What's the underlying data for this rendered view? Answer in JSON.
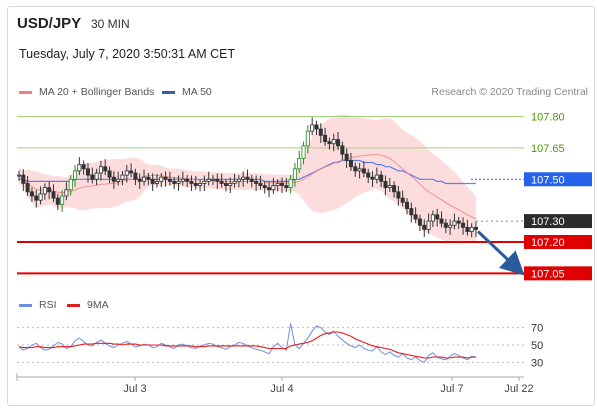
{
  "header": {
    "symbol": "USD/JPY",
    "timeframe": "30 MIN",
    "datetime": "Tuesday, July 7, 2020 3:50:31 AM CET"
  },
  "credit": "Research © 2020 Trading Central",
  "legend_price": [
    {
      "label": "MA 20 + Bollinger Bands",
      "color": "#f08080"
    },
    {
      "label": "MA 50",
      "color": "#3a5fa0"
    }
  ],
  "legend_rsi": [
    {
      "label": "RSI",
      "color": "#6f8fe0"
    },
    {
      "label": "9MA",
      "color": "#e02020"
    }
  ],
  "colors": {
    "resistance_green": "#a4d17a",
    "support_red": "#e00000",
    "current_price": "#2b2b2b",
    "ma50_level": "#2563eb",
    "bollinger_fill": "#fbd0d0",
    "arrow": "#2a5a99",
    "candle": "#333333",
    "candle_up_highlight": "#1f8f1f"
  },
  "chart_data": [
    {
      "type": "candlestick",
      "title": "USD/JPY 30 MIN",
      "y_axis_levels": [
        {
          "value": "107.80",
          "kind": "resistance"
        },
        {
          "value": "107.65",
          "kind": "resistance"
        },
        {
          "value": "107.50",
          "kind": "ma50"
        },
        {
          "value": "107.30",
          "kind": "current"
        },
        {
          "value": "107.20",
          "kind": "support"
        },
        {
          "value": "107.05",
          "kind": "support"
        }
      ],
      "ylim": [
        106.98,
        107.86
      ],
      "x_tick_labels": [
        "Jul 3",
        "Jul 4",
        "Jul 7",
        "Jul 22"
      ],
      "close_series": [
        107.52,
        107.48,
        107.44,
        107.42,
        107.4,
        107.43,
        107.46,
        107.44,
        107.41,
        107.38,
        107.42,
        107.45,
        107.5,
        107.54,
        107.57,
        107.55,
        107.52,
        107.5,
        107.53,
        107.56,
        107.54,
        107.51,
        107.49,
        107.5,
        107.52,
        107.54,
        107.53,
        107.5,
        107.49,
        107.51,
        107.5,
        107.48,
        107.49,
        107.51,
        107.5,
        107.49,
        107.48,
        107.49,
        107.5,
        107.49,
        107.48,
        107.47,
        107.48,
        107.49,
        107.5,
        107.5,
        107.49,
        107.48,
        107.47,
        107.48,
        107.49,
        107.5,
        107.51,
        107.5,
        107.49,
        107.48,
        107.47,
        107.46,
        107.45,
        107.47,
        107.48,
        107.47,
        107.46,
        107.5,
        107.55,
        107.6,
        107.66,
        107.73,
        107.76,
        107.74,
        107.71,
        107.68,
        107.67,
        107.69,
        107.66,
        107.62,
        107.59,
        107.56,
        107.54,
        107.55,
        107.53,
        107.51,
        107.5,
        107.52,
        107.49,
        107.46,
        107.47,
        107.44,
        107.41,
        107.39,
        107.36,
        107.33,
        107.31,
        107.28,
        107.26,
        107.3,
        107.33,
        107.31,
        107.29,
        107.27,
        107.28,
        107.3,
        107.29,
        107.27,
        107.25,
        107.27,
        107.26
      ],
      "ma50_series": [
        107.5,
        107.5,
        107.49,
        107.49,
        107.49,
        107.49,
        107.49,
        107.49,
        107.49,
        107.49,
        107.49,
        107.49,
        107.49,
        107.5,
        107.5,
        107.5,
        107.5,
        107.5,
        107.5,
        107.5,
        107.5,
        107.5,
        107.5,
        107.5,
        107.5,
        107.5,
        107.5,
        107.5,
        107.5,
        107.5,
        107.5,
        107.5,
        107.5,
        107.5,
        107.5,
        107.5,
        107.5,
        107.5,
        107.5,
        107.5,
        107.5,
        107.5,
        107.5,
        107.5,
        107.5,
        107.5,
        107.5,
        107.5,
        107.5,
        107.5,
        107.5,
        107.5,
        107.5,
        107.5,
        107.5,
        107.5,
        107.5,
        107.49,
        107.49,
        107.49,
        107.49,
        107.49,
        107.49,
        107.49,
        107.5,
        107.5,
        107.51,
        107.52,
        107.53,
        107.54,
        107.55,
        107.56,
        107.57,
        107.58,
        107.58,
        107.59,
        107.59,
        107.59,
        107.59,
        107.59,
        107.58,
        107.58,
        107.58,
        107.57,
        107.57,
        107.56,
        107.56,
        107.55,
        107.54,
        107.54,
        107.53,
        107.52,
        107.51,
        107.5,
        107.5,
        107.5,
        107.5,
        107.49,
        107.49,
        107.48,
        107.48,
        107.48,
        107.48,
        107.48,
        107.48,
        107.48,
        107.48
      ],
      "projection_target": "107.05"
    },
    {
      "type": "line",
      "title": "RSI",
      "y_tick_labels": [
        "70",
        "50",
        "30"
      ],
      "ylim": [
        20,
        80
      ],
      "rsi_series": [
        48,
        44,
        46,
        50,
        52,
        47,
        44,
        45,
        49,
        53,
        51,
        46,
        48,
        55,
        58,
        54,
        50,
        49,
        53,
        56,
        52,
        49,
        47,
        50,
        52,
        54,
        51,
        48,
        49,
        51,
        50,
        47,
        48,
        52,
        50,
        48,
        46,
        50,
        51,
        49,
        47,
        46,
        49,
        50,
        52,
        51,
        48,
        47,
        45,
        48,
        50,
        53,
        52,
        49,
        47,
        45,
        44,
        42,
        40,
        48,
        52,
        47,
        44,
        75,
        50,
        46,
        52,
        58,
        66,
        72,
        70,
        65,
        62,
        66,
        60,
        56,
        52,
        49,
        47,
        50,
        46,
        44,
        43,
        48,
        42,
        39,
        42,
        38,
        36,
        40,
        35,
        33,
        36,
        32,
        30,
        38,
        41,
        36,
        34,
        33,
        37,
        40,
        38,
        35,
        33,
        37,
        36
      ],
      "ma9_series": [
        48,
        47,
        47,
        47,
        48,
        48,
        47,
        47,
        47,
        48,
        48,
        48,
        48,
        49,
        50,
        51,
        51,
        51,
        52,
        52,
        52,
        52,
        51,
        51,
        50,
        51,
        51,
        51,
        50,
        50,
        50,
        50,
        50,
        50,
        49,
        49,
        49,
        49,
        49,
        49,
        49,
        48,
        48,
        48,
        49,
        49,
        49,
        49,
        49,
        49,
        49,
        49,
        49,
        49,
        49,
        49,
        48,
        47,
        46,
        46,
        46,
        46,
        46,
        49,
        50,
        51,
        52,
        53,
        55,
        58,
        61,
        63,
        64,
        65,
        65,
        64,
        62,
        60,
        57,
        55,
        53,
        51,
        49,
        48,
        47,
        46,
        45,
        43,
        41,
        40,
        39,
        38,
        37,
        36,
        35,
        35,
        36,
        36,
        36,
        35,
        35,
        36,
        36,
        36,
        35,
        36,
        36
      ]
    }
  ]
}
